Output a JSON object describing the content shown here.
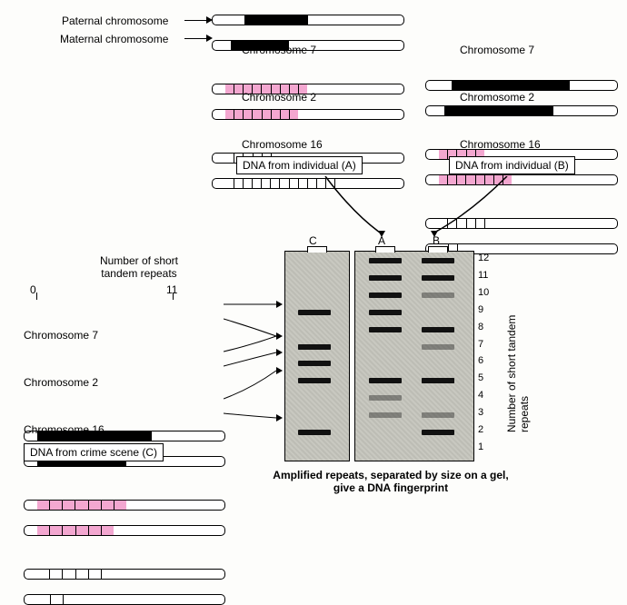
{
  "colors": {
    "ink": "#000000",
    "paper": "#fdfdfb",
    "pink": "#f3a7d0",
    "gel_bg_a": "#bdbdb5",
    "gel_bg_b": "#c8c8c0",
    "band": "#111111"
  },
  "top_labels": {
    "paternal": "Paternal chromosome",
    "maternal": "Maternal chromosome"
  },
  "individuals": {
    "A": {
      "box_label": "DNA from individual (A)",
      "chr7": {
        "label": "Chromosome 7",
        "style": "solid",
        "paternal_repeats": 11,
        "maternal_repeats": 10
      },
      "chr2": {
        "label": "Chromosome 2",
        "style": "pink",
        "paternal_repeats": 9,
        "maternal_repeats": 8
      },
      "chr16": {
        "label": "Chromosome 16",
        "style": "white",
        "paternal_repeats": 5,
        "maternal_repeats": 12
      }
    },
    "B": {
      "box_label": "DNA from individual (B)",
      "chr7": {
        "label": "Chromosome 7",
        "style": "solid",
        "paternal_repeats": 12,
        "maternal_repeats": 11
      },
      "chr2": {
        "label": "Chromosome 2",
        "style": "pink",
        "paternal_repeats": 5,
        "maternal_repeats": 8
      },
      "chr16": {
        "label": "Chromosome 16",
        "style": "white",
        "paternal_repeats": 5,
        "maternal_repeats": 2
      }
    }
  },
  "crime_sample": {
    "box_label": "DNA from crime scene (C)",
    "heading": "Number of short\ntandem repeats",
    "scale": {
      "min": 0,
      "max": 11
    },
    "chr7": {
      "label": "Chromosome 7",
      "style": "solid",
      "paternal_repeats": 9,
      "maternal_repeats": 7
    },
    "chr2": {
      "label": "Chromosome 2",
      "style": "pink",
      "paternal_repeats": 7,
      "maternal_repeats": 6
    },
    "chr16": {
      "label": "Chromosome 16",
      "style": "white",
      "paternal_repeats": 5,
      "maternal_repeats": 2
    }
  },
  "gel": {
    "caption": "Amplified repeats, separated by size on a gel, give a DNA fingerprint",
    "yaxis_label": "Number of short tandem repeats",
    "scale_min": 1,
    "scale_max": 12,
    "lanes": {
      "C": {
        "label": "C",
        "bands": [
          9,
          7,
          7,
          6,
          5,
          2
        ],
        "faint": []
      },
      "A": {
        "label": "A",
        "bands": [
          11,
          10,
          9,
          8,
          12,
          5
        ],
        "faint": [
          4,
          3
        ]
      },
      "B": {
        "label": "B",
        "bands": [
          12,
          11,
          5,
          8,
          5,
          2
        ],
        "faint": [
          10,
          7,
          3
        ]
      }
    }
  }
}
